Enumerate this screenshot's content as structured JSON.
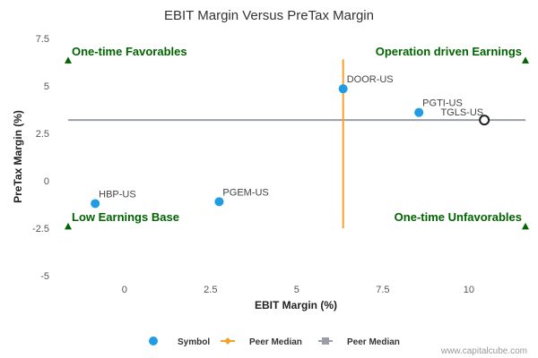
{
  "chart_data": {
    "type": "scatter",
    "title": "EBIT Margin Versus PreTax Margin",
    "xlabel": "EBIT Margin (%)",
    "ylabel": "PreTax Margin (%)",
    "xlim": [
      -2,
      11.8
    ],
    "ylim": [
      -5,
      7.5
    ],
    "xticks": [
      0,
      2.5,
      5,
      7.5,
      10
    ],
    "xtick_labels": [
      "0",
      "2.5",
      "5",
      "7.5",
      "10"
    ],
    "yticks": [
      -5,
      -2.5,
      0,
      2.5,
      5,
      7.5
    ],
    "ytick_labels": [
      "-5",
      "-2.5",
      "0",
      "2.5",
      "5",
      "7.5"
    ],
    "grid": false,
    "legend_position": "bottom",
    "points": [
      {
        "label": "HBP-US",
        "x": -0.85,
        "y": -1.2
      },
      {
        "label": "PGEM-US",
        "x": 2.75,
        "y": -1.1
      },
      {
        "label": "DOOR-US",
        "x": 6.35,
        "y": 4.85
      },
      {
        "label": "PGTI-US",
        "x": 8.55,
        "y": 3.6
      }
    ],
    "highlight": {
      "label": "TGLS-US",
      "x": 10.45,
      "y": 3.2
    },
    "peer_median_x": 6.35,
    "peer_median_y": 3.2,
    "peer_median_x_range_y": [
      -2.5,
      6.4
    ],
    "quadrant_labels": {
      "top_left": "One-time Favorables",
      "top_right": "Operation driven Earnings",
      "bottom_left": "Low Earnings Base",
      "bottom_right": "One-time Unfavorables"
    },
    "legend": [
      {
        "label": "Symbol",
        "kind": "dot",
        "color": "#1f9ce4"
      },
      {
        "label": "Peer Median",
        "kind": "line-diamond",
        "color": "#f4a22f"
      },
      {
        "label": "Peer Median",
        "kind": "line-square",
        "color": "#9a9ea6"
      }
    ],
    "colors": {
      "point": "#1f9ce4",
      "vertical_median": "#f4a22f",
      "horizontal_median": "#9a9ea6",
      "quadrant": "#006400",
      "highlight_stroke": "#222222"
    }
  },
  "credit": "www.capitalcube.com"
}
